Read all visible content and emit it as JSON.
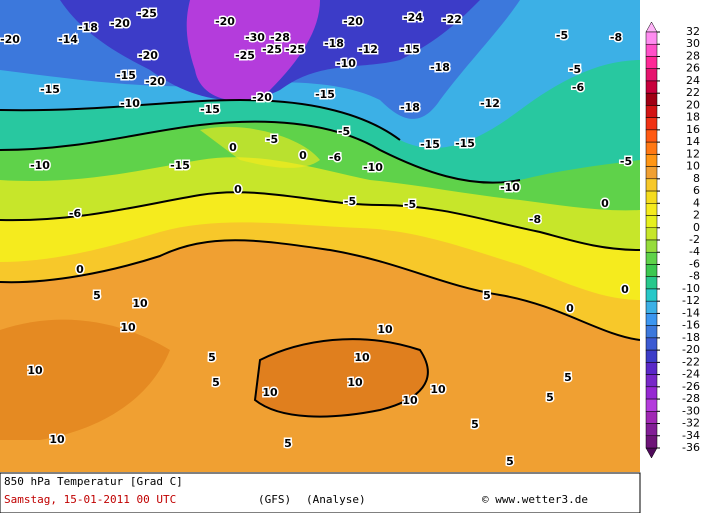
{
  "footer": {
    "title": "850 hPa Temperatur [Grad C]",
    "date": "Samstag, 15-01-2011  00 UTC",
    "model": "(GFS)",
    "run": "(Analyse)",
    "credit": "© www.wetter3.de"
  },
  "legend": {
    "ticks": [
      32,
      30,
      28,
      26,
      24,
      22,
      20,
      18,
      16,
      14,
      12,
      10,
      8,
      6,
      4,
      2,
      0,
      -2,
      -4,
      -6,
      -8,
      -10,
      -12,
      -14,
      -16,
      -18,
      -20,
      -22,
      -24,
      -26,
      -28,
      -30,
      -32,
      -34,
      -36
    ],
    "colors": [
      "#ff8cf0",
      "#ff50c8",
      "#ff2896",
      "#e6146e",
      "#c8003c",
      "#a00014",
      "#d21414",
      "#f03214",
      "#ff5a14",
      "#ff7814",
      "#ff9614",
      "#f0a032",
      "#f7c82a",
      "#f5dc1e",
      "#f5eb1e",
      "#e6f01e",
      "#c7e62a",
      "#96dc3c",
      "#5fd24a",
      "#3cc850",
      "#28c88c",
      "#28c8c8",
      "#3cb0e6",
      "#3c96f0",
      "#3c78dc",
      "#3c5ad2",
      "#3c3cc8",
      "#5a28c8",
      "#7828c8",
      "#9628d2",
      "#b43cdc",
      "#a028b4",
      "#821e96",
      "#6e1478"
    ]
  },
  "map_labels": [
    -20,
    -25,
    -18,
    -14,
    -20,
    -20,
    -20,
    -30,
    -28,
    -25,
    -25,
    -25,
    -20,
    -24,
    -22,
    -18,
    -12,
    -15,
    -10,
    -20,
    -15,
    -15,
    -10,
    -15,
    -20,
    -15,
    -18,
    -18,
    -12,
    -5,
    -5,
    -8,
    -6,
    0,
    -5,
    -5,
    -15,
    -15,
    -10,
    -10,
    -15,
    -6,
    -10,
    -6,
    0,
    0,
    -5,
    -5,
    -8,
    0,
    0,
    5,
    10,
    10,
    10,
    5,
    5,
    10,
    10,
    10,
    10,
    10,
    10,
    10,
    5,
    5,
    5,
    5,
    5,
    0,
    0,
    5,
    -5
  ]
}
